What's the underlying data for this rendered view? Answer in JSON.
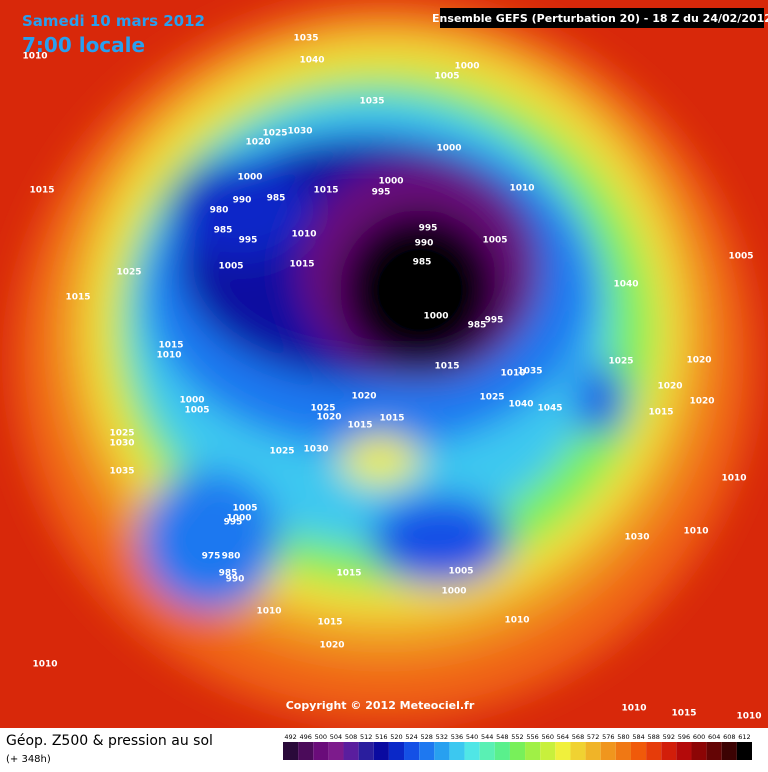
{
  "header": {
    "date": "Samedi 10 mars 2012",
    "time": "7:00 locale",
    "model": "Ensemble GEFS (Perturbation 20)  -  18 Z du 24/02/2012"
  },
  "isobar_labels": [
    1035,
    1040,
    1010,
    1000,
    1005,
    1035,
    1025,
    1030,
    1020,
    1000,
    1000,
    990,
    985,
    1000,
    995,
    1015,
    1010,
    980,
    985,
    995,
    1010,
    995,
    990,
    985,
    1005,
    1005,
    1015,
    1015,
    1025,
    1005,
    1040,
    1015,
    1000,
    985,
    995,
    1015,
    1010,
    1015,
    1035,
    1010,
    1025,
    1020,
    1000,
    1005,
    1020,
    1025,
    1040,
    1045,
    1020,
    1020,
    1025,
    1020,
    1015,
    1015,
    1015,
    1025,
    1030,
    1030,
    1025,
    1035,
    1010,
    1005,
    1000,
    995,
    975,
    980,
    985,
    990,
    1030,
    1010,
    1015,
    1005,
    1000,
    1010,
    1015,
    1010,
    1020,
    1010,
    1010,
    1015,
    1010
  ],
  "copyright": "Copyright © 2012 Meteociel.fr",
  "footer": {
    "title": "Géop. Z500 & pression au sol",
    "lead": "(+ 348h)"
  },
  "colorbar": {
    "ticks": [
      492,
      496,
      500,
      504,
      508,
      512,
      516,
      520,
      524,
      528,
      532,
      536,
      540,
      544,
      548,
      552,
      556,
      560,
      564,
      568,
      572,
      576,
      580,
      584,
      588,
      592,
      596,
      600,
      604,
      608,
      612
    ],
    "colors": [
      "#2a0a3a",
      "#4b0b5a",
      "#6a0c7a",
      "#7d1b8c",
      "#5a1e9e",
      "#2a1e9e",
      "#0a0aa0",
      "#0a28c8",
      "#1450e6",
      "#1e78f0",
      "#28a0f0",
      "#3cc8f0",
      "#50e6e6",
      "#5af0b4",
      "#5af08c",
      "#78f05a",
      "#a0f046",
      "#c8f03c",
      "#f0f03c",
      "#f0d232",
      "#f0b428",
      "#f0961e",
      "#f07814",
      "#f05a0a",
      "#e63c0a",
      "#d21e0a",
      "#b40a0a",
      "#8c0505",
      "#640505",
      "#3c0303",
      "#000000"
    ]
  }
}
